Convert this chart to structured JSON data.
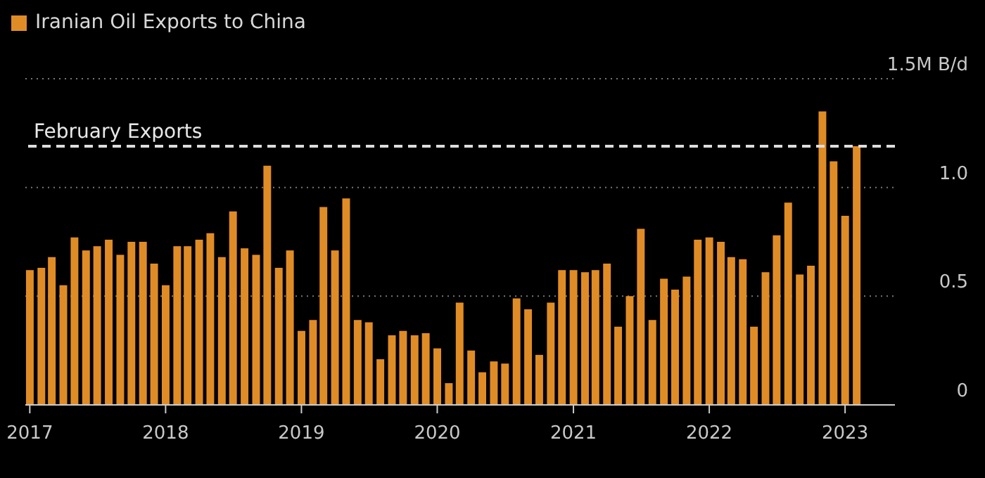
{
  "chart_data": {
    "type": "bar",
    "x": [
      "2017-01",
      "2017-02",
      "2017-03",
      "2017-04",
      "2017-05",
      "2017-06",
      "2017-07",
      "2017-08",
      "2017-09",
      "2017-10",
      "2017-11",
      "2017-12",
      "2018-01",
      "2018-02",
      "2018-03",
      "2018-04",
      "2018-05",
      "2018-06",
      "2018-07",
      "2018-08",
      "2018-09",
      "2018-10",
      "2018-11",
      "2018-12",
      "2019-01",
      "2019-02",
      "2019-03",
      "2019-04",
      "2019-05",
      "2019-06",
      "2019-07",
      "2019-08",
      "2019-09",
      "2019-10",
      "2019-11",
      "2019-12",
      "2020-01",
      "2020-02",
      "2020-03",
      "2020-04",
      "2020-05",
      "2020-06",
      "2020-07",
      "2020-08",
      "2020-09",
      "2020-10",
      "2020-11",
      "2020-12",
      "2021-01",
      "2021-02",
      "2021-03",
      "2021-04",
      "2021-05",
      "2021-06",
      "2021-07",
      "2021-08",
      "2021-09",
      "2021-10",
      "2021-11",
      "2021-12",
      "2022-01",
      "2022-02",
      "2022-03",
      "2022-04",
      "2022-05",
      "2022-06",
      "2022-07",
      "2022-08",
      "2022-09",
      "2022-10",
      "2022-11",
      "2022-12",
      "2023-01",
      "2023-02"
    ],
    "series": [
      {
        "name": "Iranian Oil Exports to China",
        "color": "#e08c26",
        "values": [
          0.62,
          0.63,
          0.68,
          0.55,
          0.77,
          0.71,
          0.73,
          0.76,
          0.69,
          0.75,
          0.75,
          0.65,
          0.55,
          0.73,
          0.73,
          0.76,
          0.79,
          0.68,
          0.89,
          0.72,
          0.69,
          1.1,
          0.63,
          0.71,
          0.34,
          0.39,
          0.91,
          0.71,
          0.95,
          0.39,
          0.38,
          0.21,
          0.32,
          0.34,
          0.32,
          0.33,
          0.26,
          0.1,
          0.47,
          0.25,
          0.15,
          0.2,
          0.19,
          0.49,
          0.44,
          0.23,
          0.47,
          0.62,
          0.62,
          0.61,
          0.62,
          0.65,
          0.36,
          0.5,
          0.81,
          0.39,
          0.58,
          0.53,
          0.59,
          0.76,
          0.77,
          0.75,
          0.68,
          0.67,
          0.36,
          0.61,
          0.78,
          0.93,
          0.6,
          0.64,
          1.35,
          1.12,
          0.87,
          1.19
        ]
      }
    ],
    "xlim": [
      "2016-12-20",
      "2023-05-15"
    ],
    "xticks": [
      "2017",
      "2018",
      "2019",
      "2020",
      "2021",
      "2022",
      "2023"
    ],
    "ylim": [
      0,
      1.5
    ],
    "yticks": [
      0,
      0.5,
      {
        "value": 1,
        "label": "1.0"
      },
      {
        "value": 1.5,
        "label": "1.5M B/d"
      }
    ],
    "grid": "y",
    "legend": "top left",
    "ref_lines": [
      {
        "axis": "y",
        "value": 1.19,
        "label": "February Exports",
        "color": "#dddddd",
        "line_style": "dashed"
      }
    ]
  }
}
